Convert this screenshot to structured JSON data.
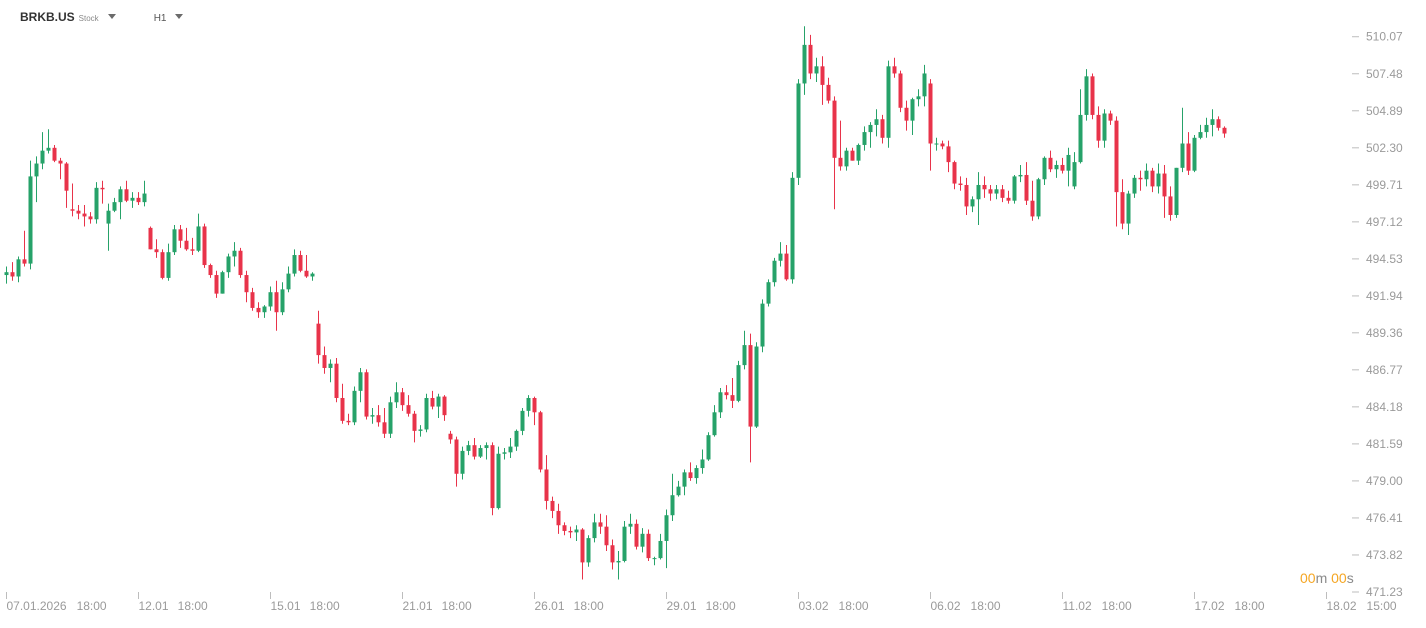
{
  "header": {
    "symbol": "BRKB.US",
    "instrument_type": "Stock",
    "timeframe": "H1"
  },
  "countdown": {
    "minutes": "00",
    "minutes_unit": "m",
    "seconds": "00",
    "seconds_unit": "s"
  },
  "colors": {
    "up": "#26a269",
    "down": "#e8334a",
    "axis_text": "#9a9a9a",
    "tick": "#bdbdbd",
    "countdown": "#f5a623"
  },
  "chart_data": {
    "type": "candlestick",
    "ylim": [
      471.23,
      511.1
    ],
    "y_ticks": [
      "510.07",
      "507.48",
      "504.89",
      "502.30",
      "499.71",
      "497.12",
      "494.53",
      "491.94",
      "489.36",
      "486.77",
      "484.18",
      "481.59",
      "479.00",
      "476.41",
      "473.82",
      "471.23"
    ],
    "x_ticks": [
      {
        "date": "07.01.2026",
        "time": "18:00",
        "index": 0
      },
      {
        "date": "12.01",
        "time": "18:00",
        "index": 22
      },
      {
        "date": "15.01",
        "time": "18:00",
        "index": 44
      },
      {
        "date": "21.01",
        "time": "18:00",
        "index": 66
      },
      {
        "date": "26.01",
        "time": "18:00",
        "index": 88
      },
      {
        "date": "29.01",
        "time": "18:00",
        "index": 110
      },
      {
        "date": "03.02",
        "time": "18:00",
        "index": 132
      },
      {
        "date": "06.02",
        "time": "18:00",
        "index": 154
      },
      {
        "date": "11.02",
        "time": "18:00",
        "index": 176
      },
      {
        "date": "17.02",
        "time": "18:00",
        "index": 198
      },
      {
        "date": "18.02",
        "time": "15:00",
        "index": 220
      }
    ],
    "candles": [
      [
        493.4,
        494.0,
        492.8,
        493.6
      ],
      [
        493.6,
        494.3,
        493.0,
        493.3
      ],
      [
        493.3,
        494.7,
        492.9,
        494.5
      ],
      [
        494.5,
        496.5,
        494.0,
        494.2
      ],
      [
        494.2,
        501.4,
        493.8,
        500.3
      ],
      [
        500.3,
        501.7,
        498.5,
        501.2
      ],
      [
        501.2,
        503.4,
        500.8,
        502.1
      ],
      [
        502.1,
        503.6,
        501.9,
        502.3
      ],
      [
        502.3,
        502.5,
        501.3,
        501.4
      ],
      [
        501.4,
        501.6,
        500.1,
        501.2
      ],
      [
        501.2,
        501.3,
        498.1,
        499.3
      ],
      [
        498.0,
        499.8,
        497.5,
        497.9
      ],
      [
        497.9,
        498.3,
        497.3,
        497.7
      ],
      [
        497.7,
        498.3,
        496.8,
        497.5
      ],
      [
        497.5,
        497.8,
        497.0,
        497.3
      ],
      [
        497.3,
        499.9,
        497.0,
        499.5
      ],
      [
        499.5,
        500.0,
        498.4,
        499.4
      ],
      [
        497.0,
        498.4,
        495.1,
        497.9
      ],
      [
        497.9,
        498.8,
        497.8,
        498.5
      ],
      [
        498.5,
        499.6,
        497.3,
        499.4
      ],
      [
        499.4,
        500.0,
        498.5,
        498.6
      ],
      [
        498.6,
        499.2,
        498.1,
        498.8
      ],
      [
        498.8,
        499.2,
        498.3,
        498.5
      ],
      [
        498.5,
        500.0,
        498.2,
        499.1
      ],
      [
        496.7,
        496.8,
        495.2,
        495.2
      ],
      [
        495.2,
        495.9,
        494.6,
        495.0
      ],
      [
        495.0,
        495.2,
        493.1,
        493.2
      ],
      [
        493.2,
        495.6,
        493.0,
        495.0
      ],
      [
        495.0,
        496.9,
        494.8,
        496.6
      ],
      [
        496.6,
        496.9,
        495.3,
        495.8
      ],
      [
        495.8,
        496.7,
        495.1,
        495.2
      ],
      [
        495.2,
        496.0,
        494.8,
        495.1
      ],
      [
        495.1,
        497.7,
        495.0,
        496.8
      ],
      [
        496.8,
        497.0,
        493.9,
        494.1
      ],
      [
        494.1,
        494.2,
        493.2,
        493.4
      ],
      [
        493.4,
        493.7,
        491.8,
        492.1
      ],
      [
        492.1,
        493.7,
        492.1,
        493.6
      ],
      [
        493.6,
        494.9,
        493.2,
        494.7
      ],
      [
        494.7,
        495.7,
        494.0,
        495.1
      ],
      [
        495.1,
        495.3,
        493.2,
        493.4
      ],
      [
        493.4,
        493.7,
        491.5,
        492.2
      ],
      [
        492.2,
        492.5,
        490.9,
        491.1
      ],
      [
        491.1,
        491.5,
        490.4,
        490.8
      ],
      [
        490.8,
        491.3,
        490.4,
        491.2
      ],
      [
        491.2,
        492.6,
        490.9,
        492.2
      ],
      [
        492.2,
        493.0,
        489.5,
        490.8
      ],
      [
        490.8,
        492.9,
        490.6,
        492.4
      ],
      [
        492.4,
        494.0,
        492.2,
        493.5
      ],
      [
        493.5,
        495.2,
        493.3,
        494.8
      ],
      [
        494.8,
        495.1,
        493.6,
        493.7
      ],
      [
        493.7,
        494.8,
        493.2,
        493.3
      ],
      [
        493.3,
        493.6,
        493.0,
        493.5
      ],
      [
        490.0,
        490.9,
        487.2,
        487.8
      ],
      [
        487.8,
        488.4,
        486.5,
        486.9
      ],
      [
        486.9,
        487.5,
        485.9,
        487.2
      ],
      [
        487.2,
        487.6,
        484.5,
        484.8
      ],
      [
        484.8,
        485.8,
        483.0,
        483.2
      ],
      [
        483.2,
        483.7,
        482.9,
        483.1
      ],
      [
        483.1,
        485.6,
        482.9,
        485.3
      ],
      [
        485.3,
        486.9,
        484.5,
        486.6
      ],
      [
        486.6,
        486.8,
        483.3,
        483.5
      ],
      [
        483.5,
        484.1,
        483.0,
        483.6
      ],
      [
        483.6,
        484.3,
        482.8,
        483.1
      ],
      [
        483.1,
        484.1,
        482.0,
        482.3
      ],
      [
        482.3,
        484.9,
        482.0,
        484.5
      ],
      [
        484.5,
        485.9,
        484.1,
        485.2
      ],
      [
        485.2,
        485.5,
        483.9,
        484.3
      ],
      [
        484.3,
        485.0,
        483.5,
        483.7
      ],
      [
        483.7,
        483.9,
        481.7,
        482.5
      ],
      [
        482.5,
        482.9,
        482.1,
        482.6
      ],
      [
        482.6,
        485.1,
        482.4,
        484.8
      ],
      [
        484.8,
        485.3,
        484.0,
        484.2
      ],
      [
        484.2,
        485.1,
        483.4,
        484.9
      ],
      [
        484.9,
        485.0,
        483.2,
        483.6
      ],
      [
        482.3,
        482.5,
        481.6,
        481.9
      ],
      [
        481.9,
        482.1,
        478.6,
        479.5
      ],
      [
        479.5,
        481.4,
        479.1,
        481.1
      ],
      [
        481.1,
        481.8,
        480.8,
        481.5
      ],
      [
        481.5,
        482.0,
        480.5,
        480.7
      ],
      [
        480.7,
        481.5,
        480.6,
        481.3
      ],
      [
        481.3,
        481.7,
        480.5,
        481.5
      ],
      [
        481.5,
        481.7,
        476.6,
        477.1
      ],
      [
        477.1,
        481.4,
        477.0,
        480.9
      ],
      [
        480.9,
        481.3,
        480.5,
        481.0
      ],
      [
        481.0,
        482.0,
        480.6,
        481.4
      ],
      [
        481.4,
        482.6,
        481.1,
        482.5
      ],
      [
        482.5,
        484.1,
        482.2,
        483.9
      ],
      [
        483.9,
        485.0,
        483.5,
        484.8
      ],
      [
        484.8,
        484.9,
        482.9,
        483.8
      ],
      [
        483.8,
        483.9,
        479.6,
        479.8
      ],
      [
        479.8,
        480.8,
        477.0,
        477.6
      ],
      [
        477.6,
        477.9,
        476.4,
        476.9
      ],
      [
        476.9,
        477.4,
        475.3,
        475.9
      ],
      [
        475.9,
        476.1,
        475.2,
        475.5
      ],
      [
        475.5,
        475.8,
        475.0,
        475.4
      ],
      [
        475.4,
        475.9,
        474.8,
        475.6
      ],
      [
        475.6,
        475.7,
        472.1,
        473.3
      ],
      [
        473.3,
        475.2,
        473.0,
        475.0
      ],
      [
        475.0,
        476.7,
        474.7,
        476.1
      ],
      [
        476.1,
        476.7,
        475.3,
        475.8
      ],
      [
        475.8,
        476.6,
        474.1,
        474.5
      ],
      [
        474.5,
        474.9,
        472.8,
        473.3
      ],
      [
        473.3,
        474.1,
        472.1,
        473.4
      ],
      [
        473.4,
        476.2,
        473.3,
        475.8
      ],
      [
        475.8,
        476.7,
        475.3,
        476.0
      ],
      [
        476.0,
        476.3,
        474.2,
        474.4
      ],
      [
        474.4,
        475.7,
        474.0,
        475.3
      ],
      [
        475.3,
        475.6,
        473.4,
        473.6
      ],
      [
        473.6,
        473.7,
        473.1,
        473.6
      ],
      [
        473.6,
        475.3,
        473.5,
        474.8
      ],
      [
        474.8,
        477.0,
        472.9,
        476.6
      ],
      [
        476.6,
        479.5,
        476.2,
        478.0
      ],
      [
        478.0,
        479.0,
        477.9,
        478.6
      ],
      [
        478.6,
        479.8,
        478.0,
        479.6
      ],
      [
        479.6,
        480.3,
        479.0,
        479.2
      ],
      [
        479.2,
        480.1,
        478.8,
        479.9
      ],
      [
        479.9,
        481.2,
        479.5,
        480.5
      ],
      [
        480.5,
        482.4,
        480.4,
        482.2
      ],
      [
        482.2,
        484.3,
        482.1,
        483.8
      ],
      [
        483.8,
        485.5,
        483.4,
        485.2
      ],
      [
        485.2,
        485.7,
        484.7,
        485.0
      ],
      [
        485.0,
        486.2,
        484.1,
        484.6
      ],
      [
        484.6,
        487.4,
        484.5,
        487.1
      ],
      [
        487.1,
        489.5,
        486.8,
        488.5
      ],
      [
        488.5,
        489.3,
        480.3,
        482.8
      ],
      [
        482.8,
        488.7,
        482.7,
        488.4
      ],
      [
        488.4,
        491.7,
        488.0,
        491.4
      ],
      [
        491.4,
        493.1,
        491.2,
        492.9
      ],
      [
        492.9,
        494.6,
        492.6,
        494.4
      ],
      [
        494.4,
        495.7,
        494.0,
        494.9
      ],
      [
        494.9,
        495.5,
        493.0,
        493.1
      ],
      [
        493.1,
        500.6,
        492.8,
        500.2
      ],
      [
        500.2,
        507.1,
        499.7,
        506.8
      ],
      [
        506.8,
        510.8,
        506.0,
        509.5
      ],
      [
        509.5,
        510.2,
        507.1,
        507.5
      ],
      [
        507.5,
        508.6,
        506.9,
        508.0
      ],
      [
        508.0,
        508.7,
        505.3,
        506.7
      ],
      [
        506.7,
        507.2,
        505.4,
        505.6
      ],
      [
        505.6,
        505.9,
        498.0,
        501.6
      ],
      [
        501.6,
        504.2,
        500.7,
        501.0
      ],
      [
        501.0,
        502.3,
        500.7,
        502.1
      ],
      [
        502.1,
        502.3,
        501.4,
        501.4
      ],
      [
        501.4,
        502.6,
        501.1,
        502.5
      ],
      [
        502.5,
        503.8,
        502.1,
        503.4
      ],
      [
        503.4,
        504.1,
        502.3,
        503.9
      ],
      [
        503.9,
        505.0,
        503.1,
        504.3
      ],
      [
        504.3,
        504.6,
        502.6,
        503.0
      ],
      [
        503.0,
        508.4,
        502.3,
        508.0
      ],
      [
        508.0,
        508.6,
        507.2,
        507.5
      ],
      [
        507.5,
        507.7,
        504.8,
        505.1
      ],
      [
        505.1,
        505.6,
        503.5,
        504.2
      ],
      [
        504.2,
        505.8,
        503.2,
        505.7
      ],
      [
        505.7,
        506.4,
        505.2,
        505.9
      ],
      [
        505.9,
        508.1,
        505.2,
        507.5
      ],
      [
        506.8,
        507.1,
        500.7,
        502.6
      ],
      [
        502.6,
        503.0,
        502.1,
        502.6
      ],
      [
        502.6,
        502.8,
        502.2,
        502.4
      ],
      [
        502.4,
        502.8,
        500.6,
        501.3
      ],
      [
        501.3,
        501.4,
        499.4,
        499.8
      ],
      [
        499.8,
        500.3,
        499.3,
        499.7
      ],
      [
        499.7,
        500.2,
        497.6,
        498.2
      ],
      [
        498.2,
        498.9,
        497.8,
        498.7
      ],
      [
        498.7,
        500.6,
        496.9,
        499.7
      ],
      [
        499.7,
        500.3,
        498.8,
        499.4
      ],
      [
        499.4,
        499.7,
        498.6,
        499.1
      ],
      [
        499.1,
        499.7,
        498.7,
        499.4
      ],
      [
        499.4,
        499.7,
        498.5,
        498.8
      ],
      [
        498.8,
        499.3,
        498.4,
        498.6
      ],
      [
        498.6,
        500.4,
        498.4,
        500.3
      ],
      [
        500.3,
        501.1,
        499.9,
        500.4
      ],
      [
        500.4,
        501.3,
        498.3,
        498.6
      ],
      [
        498.6,
        500.0,
        497.2,
        497.5
      ],
      [
        497.5,
        500.2,
        497.3,
        500.1
      ],
      [
        500.1,
        501.7,
        499.7,
        501.6
      ],
      [
        501.6,
        502.1,
        500.6,
        500.8
      ],
      [
        500.8,
        501.4,
        500.2,
        501.1
      ],
      [
        501.1,
        501.6,
        500.5,
        500.7
      ],
      [
        500.7,
        502.3,
        499.6,
        501.8
      ],
      [
        499.6,
        502.0,
        499.4,
        501.3
      ],
      [
        501.3,
        506.4,
        501.2,
        504.6
      ],
      [
        504.6,
        507.8,
        504.2,
        507.3
      ],
      [
        507.3,
        507.5,
        504.3,
        504.6
      ],
      [
        504.6,
        505.2,
        502.3,
        502.8
      ],
      [
        502.8,
        505.0,
        502.3,
        504.7
      ],
      [
        504.7,
        504.9,
        503.9,
        504.2
      ],
      [
        504.2,
        504.5,
        496.8,
        499.2
      ],
      [
        499.2,
        500.1,
        496.6,
        497.0
      ],
      [
        497.0,
        499.3,
        496.2,
        499.1
      ],
      [
        499.1,
        500.4,
        498.8,
        500.2
      ],
      [
        500.2,
        500.7,
        499.3,
        500.1
      ],
      [
        500.1,
        501.2,
        499.6,
        500.7
      ],
      [
        500.7,
        500.9,
        499.2,
        499.6
      ],
      [
        499.6,
        501.2,
        499.1,
        500.5
      ],
      [
        500.5,
        501.1,
        497.4,
        498.9
      ],
      [
        498.9,
        499.6,
        497.2,
        497.6
      ],
      [
        497.6,
        500.9,
        497.4,
        500.9
      ],
      [
        500.9,
        505.1,
        500.6,
        502.6
      ],
      [
        502.6,
        503.4,
        500.4,
        500.7
      ],
      [
        500.7,
        503.2,
        500.6,
        503.0
      ],
      [
        503.0,
        503.9,
        502.9,
        503.4
      ],
      [
        503.4,
        504.4,
        503.0,
        503.9
      ],
      [
        503.9,
        505.0,
        503.1,
        504.3
      ],
      [
        504.3,
        504.5,
        503.5,
        503.7
      ],
      [
        503.7,
        503.8,
        503.0,
        503.3
      ]
    ]
  }
}
